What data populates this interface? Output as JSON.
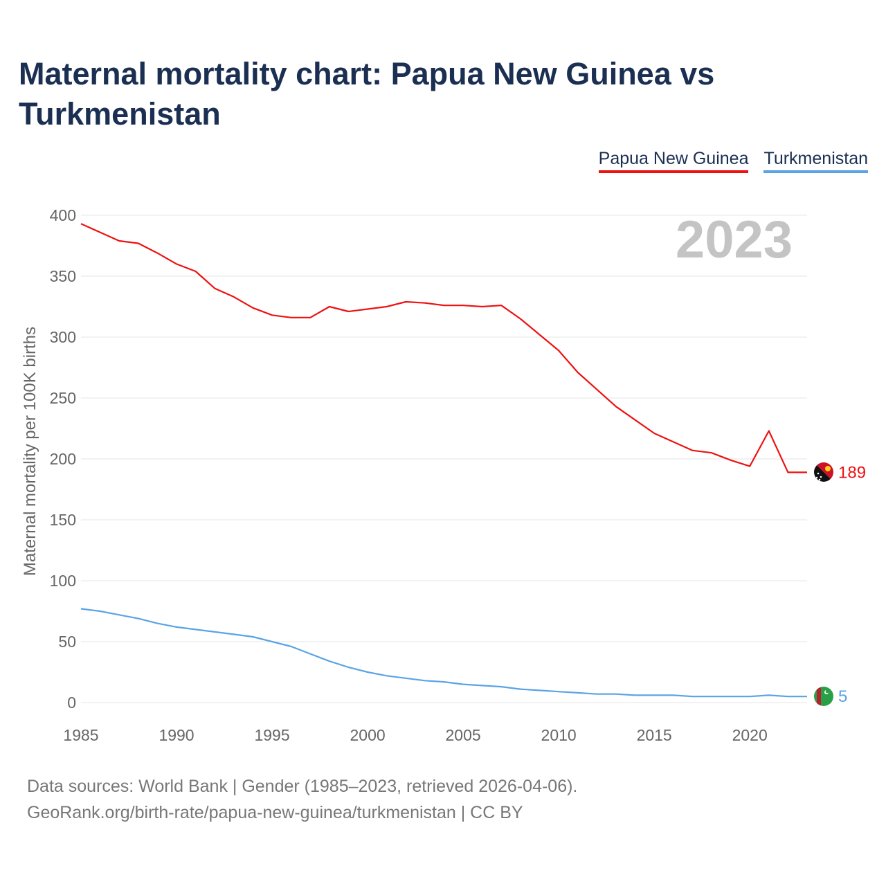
{
  "title": "Maternal mortality chart: Papua New Guinea vs Turkmenistan",
  "legend": [
    {
      "name": "Papua New Guinea",
      "color": "#ee1111"
    },
    {
      "name": "Turkmenistan",
      "color": "#5aa3e6"
    }
  ],
  "year_watermark": "2023",
  "footer": {
    "line1": "Data sources: World Bank | Gender (1985–2023, retrieved 2026-04-06).",
    "line2": "GeoRank.org/birth-rate/papua-new-guinea/turkmenistan | CC BY"
  },
  "chart_data": {
    "type": "line",
    "title": "Maternal mortality chart: Papua New Guinea vs Turkmenistan",
    "xlabel": "",
    "ylabel": "Maternal mortality per 100K births",
    "xlim": [
      1985,
      2023
    ],
    "ylim": [
      0,
      400
    ],
    "x_ticks": [
      1985,
      1990,
      1995,
      2000,
      2005,
      2010,
      2015,
      2020
    ],
    "y_ticks": [
      0,
      50,
      100,
      150,
      200,
      250,
      300,
      350,
      400
    ],
    "grid": true,
    "legend_position": "top-right",
    "x": [
      1985,
      1986,
      1987,
      1988,
      1989,
      1990,
      1991,
      1992,
      1993,
      1994,
      1995,
      1996,
      1997,
      1998,
      1999,
      2000,
      2001,
      2002,
      2003,
      2004,
      2005,
      2006,
      2007,
      2008,
      2009,
      2010,
      2011,
      2012,
      2013,
      2014,
      2015,
      2016,
      2017,
      2018,
      2019,
      2020,
      2021,
      2022,
      2023
    ],
    "series": [
      {
        "name": "Papua New Guinea",
        "color": "#ee1111",
        "end_label": "189",
        "values": [
          393,
          386,
          379,
          377,
          369,
          360,
          354,
          340,
          333,
          324,
          318,
          316,
          316,
          325,
          321,
          323,
          325,
          329,
          328,
          326,
          326,
          325,
          326,
          315,
          302,
          289,
          271,
          257,
          243,
          232,
          221,
          214,
          207,
          205,
          199,
          194,
          223,
          189,
          189
        ]
      },
      {
        "name": "Turkmenistan",
        "color": "#5aa3e6",
        "end_label": "5",
        "values": [
          77,
          75,
          72,
          69,
          65,
          62,
          60,
          58,
          56,
          54,
          50,
          46,
          40,
          34,
          29,
          25,
          22,
          20,
          18,
          17,
          15,
          14,
          13,
          11,
          10,
          9,
          8,
          7,
          7,
          6,
          6,
          6,
          5,
          5,
          5,
          5,
          6,
          5,
          5
        ]
      }
    ]
  }
}
